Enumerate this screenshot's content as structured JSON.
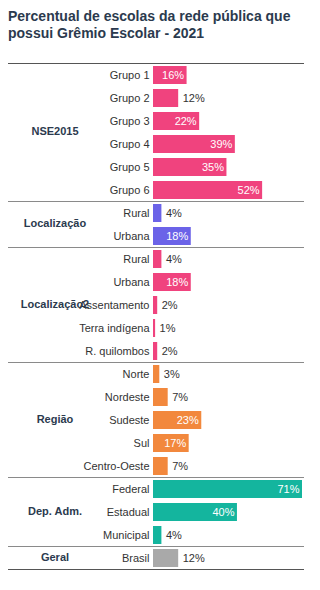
{
  "chart_data": {
    "type": "bar",
    "orientation": "horizontal",
    "title": "Percentual de escolas da rede pública que possui Grêmio Escolar - 2021",
    "categories": [
      "Grupo 1",
      "Grupo 2",
      "Grupo 3",
      "Grupo 4",
      "Grupo 5",
      "Grupo 6",
      "Rural",
      "Urbana",
      "Rural",
      "Urbana",
      "Assentamento",
      "Terra indígena",
      "R. quilombos",
      "Norte",
      "Nordeste",
      "Sudeste",
      "Sul",
      "Centro-Oeste",
      "Federal",
      "Estadual",
      "Municipal",
      "Brasil"
    ],
    "groups": [
      "NSE2015",
      "NSE2015",
      "NSE2015",
      "NSE2015",
      "NSE2015",
      "NSE2015",
      "Localização",
      "Localização",
      "Localização2",
      "Localização2",
      "Localização2",
      "Localização2",
      "Localização2",
      "Região",
      "Região",
      "Região",
      "Região",
      "Região",
      "Dep. Adm.",
      "Dep. Adm.",
      "Dep. Adm.",
      "Geral"
    ],
    "values": [
      16,
      12,
      22,
      39,
      35,
      52,
      4,
      18,
      4,
      18,
      2,
      1,
      2,
      3,
      7,
      23,
      17,
      7,
      71,
      40,
      4,
      12
    ],
    "value_labels": [
      "16%",
      "12%",
      "22%",
      "39%",
      "35%",
      "52%",
      "4%",
      "18%",
      "4%",
      "18%",
      "2%",
      "1%",
      "2%",
      "3%",
      "7%",
      "23%",
      "17%",
      "7%",
      "71%",
      "40%",
      "4%",
      "12%"
    ],
    "colors": [
      "#f0437e",
      "#f0437e",
      "#f0437e",
      "#f0437e",
      "#f0437e",
      "#f0437e",
      "#6b63e8",
      "#6b63e8",
      "#f0437e",
      "#f0437e",
      "#f0437e",
      "#f0437e",
      "#f0437e",
      "#f2883d",
      "#f2883d",
      "#f2883d",
      "#f2883d",
      "#f2883d",
      "#14b59e",
      "#14b59e",
      "#14b59e",
      "#a9a9a9"
    ],
    "xlim": [
      0,
      71
    ],
    "tick_labels": "y",
    "data_labels": true,
    "grid": false
  }
}
